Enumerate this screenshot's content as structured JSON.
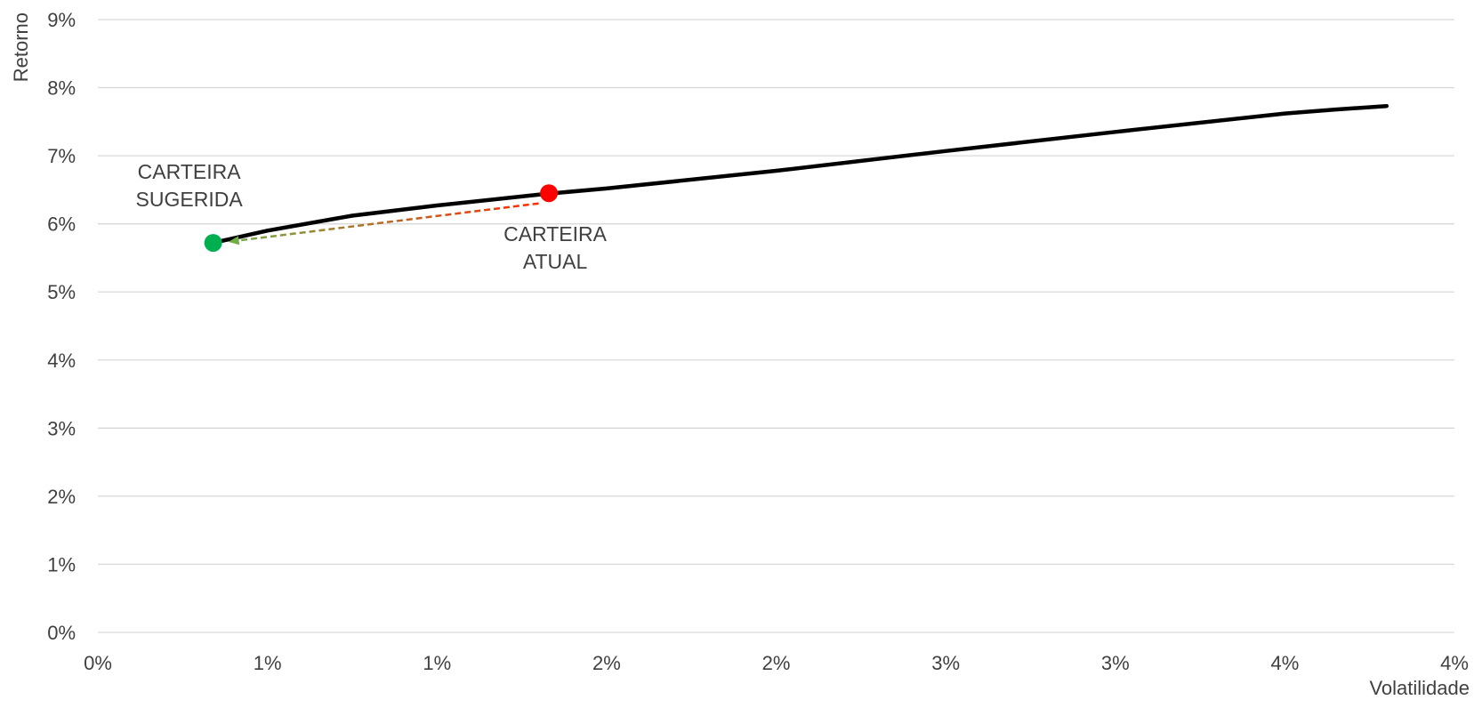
{
  "chart_data": {
    "type": "line",
    "title": "",
    "xlabel": "Volatilidade",
    "ylabel": "Retorno",
    "xlim": [
      0,
      0.04
    ],
    "ylim": [
      0,
      0.09
    ],
    "x_ticks": [
      0,
      0.005,
      0.01,
      0.015,
      0.02,
      0.025,
      0.03,
      0.035,
      0.04
    ],
    "x_tick_labels": [
      "0%",
      "1%",
      "1%",
      "2%",
      "2%",
      "3%",
      "3%",
      "4%",
      "4%"
    ],
    "y_ticks": [
      0,
      0.01,
      0.02,
      0.03,
      0.04,
      0.05,
      0.06,
      0.07,
      0.08,
      0.09
    ],
    "y_tick_labels": [
      "0%",
      "1%",
      "2%",
      "3%",
      "4%",
      "5%",
      "6%",
      "7%",
      "8%",
      "9%"
    ],
    "grid": "horizontal",
    "legend": "none",
    "series": [
      {
        "type": "line",
        "color": "#000000",
        "points": [
          [
            0.0034,
            0.0572
          ],
          [
            0.005,
            0.059
          ],
          [
            0.0075,
            0.0612
          ],
          [
            0.01,
            0.0627
          ],
          [
            0.0132,
            0.0644
          ],
          [
            0.015,
            0.0652
          ],
          [
            0.02,
            0.0678
          ],
          [
            0.025,
            0.0707
          ],
          [
            0.03,
            0.0735
          ],
          [
            0.035,
            0.0762
          ],
          [
            0.0365,
            0.0768
          ],
          [
            0.038,
            0.0773
          ]
        ]
      }
    ],
    "points": [
      {
        "label_lines": [
          "CARTEIRA",
          "SUGERIDA"
        ],
        "x": 0.0034,
        "y": 0.0572,
        "color": "#00b050"
      },
      {
        "label_lines": [
          "CARTEIRA",
          "ATUAL"
        ],
        "x": 0.0133,
        "y": 0.0645,
        "color": "#ff0000"
      }
    ],
    "arrow": {
      "from": [
        0.013,
        0.063
      ],
      "to": [
        0.0039,
        0.0574
      ],
      "color_start": "#ff2a00",
      "color_end": "#70ad47",
      "dashed": true
    }
  }
}
